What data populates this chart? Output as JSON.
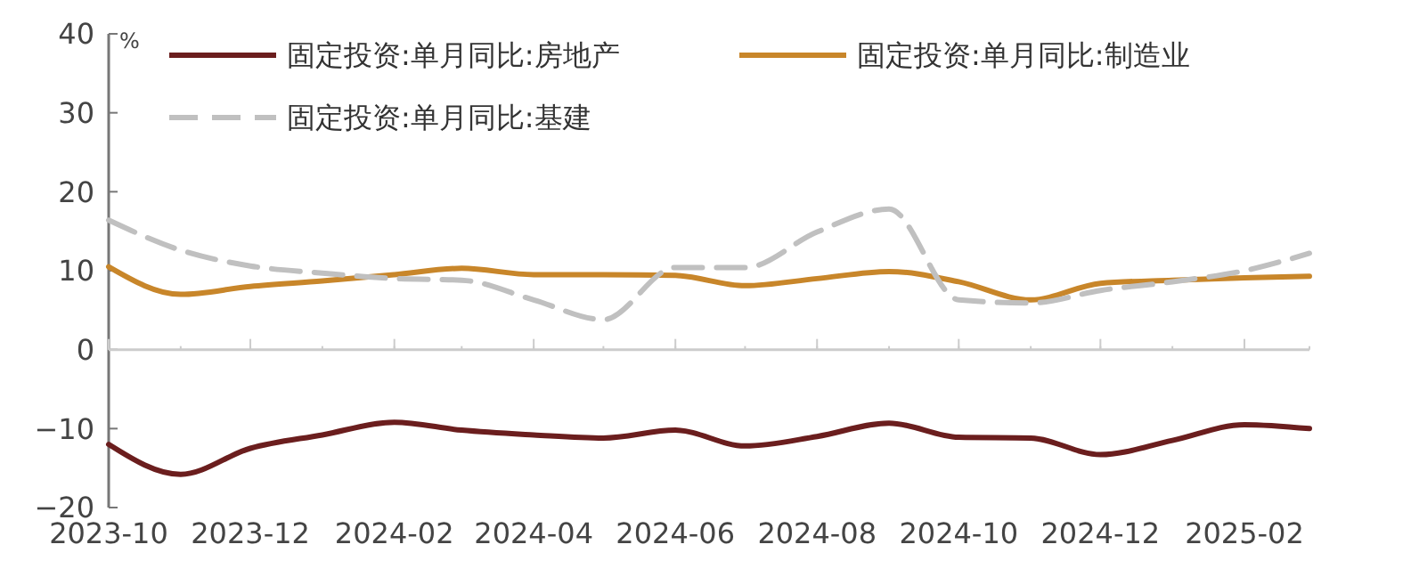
{
  "chart_data": {
    "type": "line",
    "ylabel": "%",
    "x": [
      "2023-10",
      "2023-11",
      "2023-12",
      "2024-01",
      "2024-02",
      "2024-03",
      "2024-04",
      "2024-05",
      "2024-06",
      "2024-07",
      "2024-08",
      "2024-09",
      "2024-10",
      "2024-11",
      "2024-12",
      "2025-01",
      "2025-02",
      "2025-03"
    ],
    "xlim": [
      "2023-10",
      "2025-03"
    ],
    "xticks": [
      {
        "value": "2023-10",
        "label": "2023-10"
      },
      {
        "value": "2023-12",
        "label": "2023-12"
      },
      {
        "value": "2024-02",
        "label": "2024-02"
      },
      {
        "value": "2024-04",
        "label": "2024-04"
      },
      {
        "value": "2024-06",
        "label": "2024-06"
      },
      {
        "value": "2024-08",
        "label": "2024-08"
      },
      {
        "value": "2024-10",
        "label": "2024-10"
      },
      {
        "value": "2024-12",
        "label": "2024-12"
      },
      {
        "value": "2025-02",
        "label": "2025-02"
      }
    ],
    "ylim": [
      -20,
      40
    ],
    "yticks": [
      -20,
      -10,
      0,
      10,
      20,
      30,
      40
    ],
    "legend": "top",
    "series": [
      {
        "name": "固定投资:单月同比:房地产",
        "color": "#6b1e1e",
        "line_style": "solid",
        "values": [
          -12,
          -15.8,
          -12.5,
          -10.8,
          -9.2,
          -10.2,
          -10.8,
          -11.2,
          -10.2,
          -12.2,
          -11,
          -9.3,
          -11.1,
          -11.2,
          -13.3,
          -11.5,
          -9.5,
          -10
        ]
      },
      {
        "name": "固定投资:单月同比:制造业",
        "color": "#c8862a",
        "line_style": "solid",
        "values": [
          10.5,
          7,
          8,
          8.7,
          9.5,
          10.3,
          9.5,
          9.5,
          9.4,
          8.1,
          9,
          9.9,
          8.6,
          6.3,
          8.4,
          8.8,
          9.1,
          9.3
        ]
      },
      {
        "name": "固定投资:单月同比:基建",
        "color": "#c0c0c0",
        "line_style": "dashed",
        "values": [
          16.4,
          12.6,
          10.6,
          9.7,
          9,
          8.8,
          6.3,
          3.8,
          10.4,
          10.4,
          14.9,
          17.8,
          6.3,
          5.9,
          7.5,
          8.6,
          10,
          12.2
        ]
      }
    ]
  }
}
